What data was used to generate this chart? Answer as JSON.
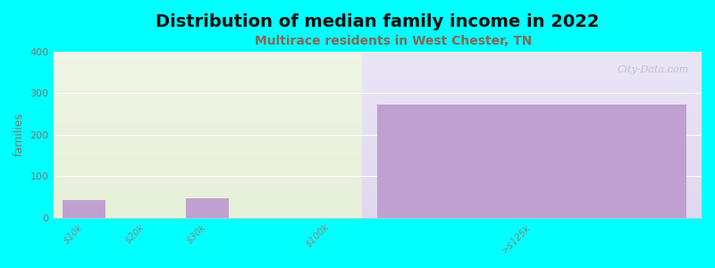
{
  "title": "Distribution of median family income in 2022",
  "subtitle": "Multirace residents in West Chester, TN",
  "categories": [
    "$10k",
    "$20k",
    "$30k",
    "$100k",
    ">$125k"
  ],
  "values": [
    42,
    0,
    48,
    0,
    272
  ],
  "bar_color": "#c0a0d0",
  "background_color": "#00ffff",
  "plot_bg_color_left": "#e6f0d8",
  "plot_bg_color_right": "#e0d8f0",
  "ylabel": "families",
  "ylim": [
    0,
    400
  ],
  "yticks": [
    0,
    100,
    200,
    300,
    400
  ],
  "watermark": "City-Data.com",
  "title_fontsize": 14,
  "subtitle_fontsize": 10,
  "subtitle_color": "#886655",
  "title_color": "#111111"
}
